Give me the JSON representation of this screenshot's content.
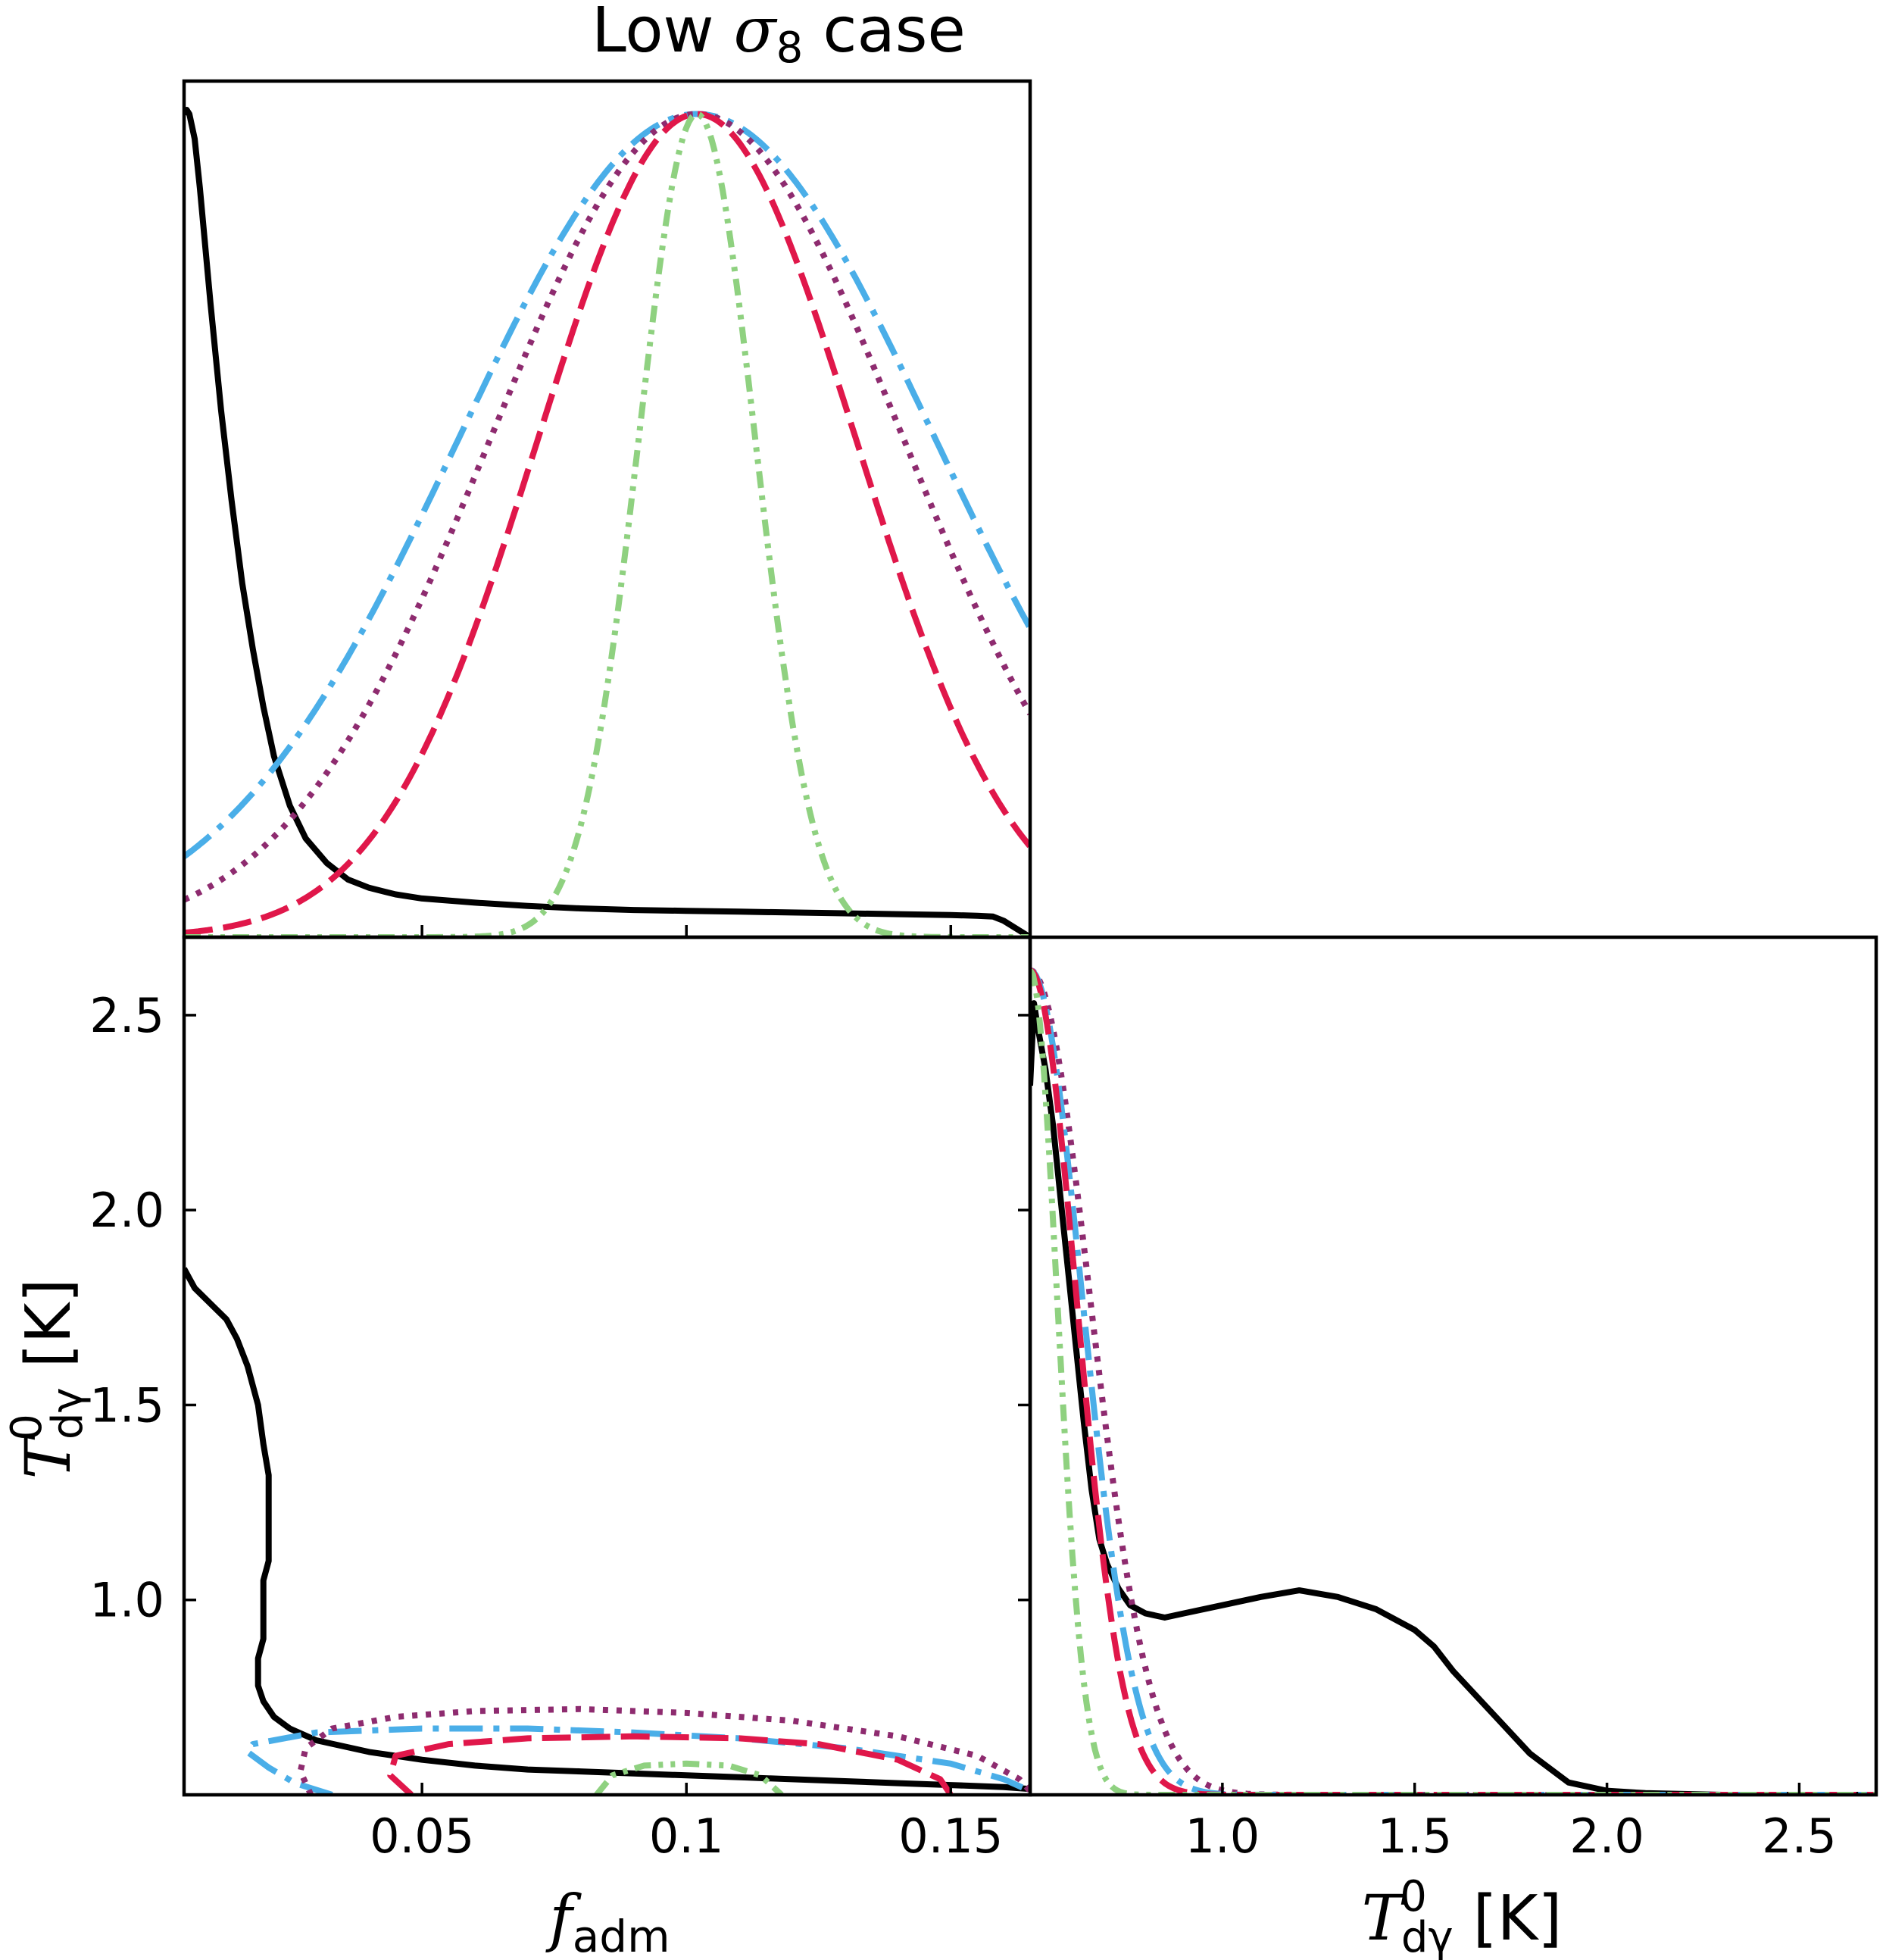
{
  "title": {
    "prefix": "Low ",
    "symbol": "σ",
    "subscript": "8",
    "suffix": " case"
  },
  "colors": {
    "black": "#000000",
    "blue": "#4aaee8",
    "purple": "#8e2b6f",
    "red": "#e0174a",
    "green": "#8fd180"
  },
  "chart_data": [
    {
      "panel": "marginal_f_adm",
      "type": "line",
      "xlim": [
        0.005,
        0.165
      ],
      "ylim": [
        0,
        1.04
      ],
      "x_ticks": [
        0.05,
        0.1,
        0.15
      ],
      "series": [
        {
          "color": "black",
          "style": "solid",
          "x": [
            0.005,
            0.0055,
            0.006,
            0.007,
            0.008,
            0.009,
            0.01,
            0.012,
            0.014,
            0.016,
            0.018,
            0.02,
            0.022,
            0.025,
            0.028,
            0.032,
            0.036,
            0.04,
            0.045,
            0.05,
            0.06,
            0.07,
            0.08,
            0.09,
            0.1,
            0.11,
            0.12,
            0.13,
            0.14,
            0.15,
            0.155,
            0.158,
            0.16,
            0.162,
            0.165
          ],
          "y": [
            1.0,
            1.005,
            1.0,
            0.97,
            0.91,
            0.84,
            0.77,
            0.64,
            0.53,
            0.43,
            0.35,
            0.28,
            0.22,
            0.16,
            0.12,
            0.09,
            0.07,
            0.06,
            0.052,
            0.047,
            0.042,
            0.038,
            0.035,
            0.033,
            0.032,
            0.031,
            0.03,
            0.029,
            0.028,
            0.027,
            0.026,
            0.025,
            0.02,
            0.012,
            0.0
          ]
        },
        {
          "color": "blue",
          "style": "dashdot",
          "mu": 0.102,
          "sigma": 0.045,
          "peak": 1.0
        },
        {
          "color": "purple",
          "style": "dotted",
          "mu": 0.102,
          "sigma": 0.039,
          "peak": 1.0
        },
        {
          "color": "red",
          "style": "dashed",
          "mu": 0.102,
          "sigma": 0.03,
          "peak": 1.0
        },
        {
          "color": "green",
          "style": "dashdotdot",
          "mu": 0.102,
          "sigma": 0.011,
          "peak": 1.0
        }
      ]
    },
    {
      "panel": "joint_f_adm_T_dgamma",
      "type": "contour",
      "xlim": [
        0.005,
        0.165
      ],
      "ylim": [
        0.5,
        2.7
      ],
      "x_ticks": [
        0.05,
        0.1,
        0.15
      ],
      "y_ticks": [
        1.0,
        1.5,
        2.0,
        2.5
      ],
      "xlabel": {
        "base": "f",
        "sub": "adm"
      },
      "ylabel": {
        "base": "T",
        "sup": "0",
        "sub": "dγ",
        "unit": " [K]"
      },
      "series": [
        {
          "color": "black",
          "style": "solid",
          "x": [
            0.005,
            0.007,
            0.01,
            0.013,
            0.015,
            0.017,
            0.019,
            0.02,
            0.021,
            0.021,
            0.02,
            0.02,
            0.019,
            0.019,
            0.02,
            0.022,
            0.025,
            0.03,
            0.04,
            0.05,
            0.06,
            0.07,
            0.08,
            0.09,
            0.1,
            0.11,
            0.12,
            0.13,
            0.14,
            0.15,
            0.16,
            0.165
          ],
          "y": [
            1.85,
            1.8,
            1.76,
            1.72,
            1.67,
            1.6,
            1.5,
            1.4,
            1.32,
            1.1,
            1.05,
            0.9,
            0.85,
            0.78,
            0.74,
            0.7,
            0.67,
            0.64,
            0.61,
            0.59,
            0.575,
            0.565,
            0.56,
            0.555,
            0.55,
            0.545,
            0.54,
            0.535,
            0.53,
            0.525,
            0.52,
            0.515
          ]
        },
        {
          "color": "blue",
          "style": "dashdot",
          "x": [
            0.033,
            0.026,
            0.021,
            0.017,
            0.018,
            0.03,
            0.05,
            0.07,
            0.09,
            0.11,
            0.13,
            0.15,
            0.16,
            0.165
          ],
          "y": [
            0.5,
            0.53,
            0.57,
            0.61,
            0.63,
            0.66,
            0.67,
            0.67,
            0.66,
            0.645,
            0.62,
            0.58,
            0.54,
            0.51
          ]
        },
        {
          "color": "purple",
          "style": "dotted",
          "x": [
            0.029,
            0.027,
            0.028,
            0.033,
            0.045,
            0.06,
            0.08,
            0.1,
            0.12,
            0.14,
            0.155,
            0.163,
            0.165
          ],
          "y": [
            0.5,
            0.56,
            0.62,
            0.67,
            0.7,
            0.715,
            0.72,
            0.71,
            0.69,
            0.65,
            0.6,
            0.54,
            0.51
          ]
        },
        {
          "color": "red",
          "style": "dashed",
          "x": [
            0.048,
            0.044,
            0.045,
            0.055,
            0.07,
            0.09,
            0.11,
            0.125,
            0.14,
            0.148,
            0.15
          ],
          "y": [
            0.5,
            0.55,
            0.6,
            0.63,
            0.645,
            0.65,
            0.645,
            0.63,
            0.59,
            0.54,
            0.5
          ]
        },
        {
          "color": "green",
          "style": "dashdotdot",
          "x": [
            0.083,
            0.086,
            0.092,
            0.1,
            0.108,
            0.114,
            0.118
          ],
          "y": [
            0.5,
            0.55,
            0.575,
            0.58,
            0.575,
            0.55,
            0.5
          ]
        }
      ]
    },
    {
      "panel": "marginal_T_dgamma",
      "type": "line",
      "xlim": [
        0.5,
        2.7
      ],
      "ylim": [
        0,
        1.04
      ],
      "x_ticks": [
        1.0,
        1.5,
        2.0,
        2.5
      ],
      "xlabel": {
        "base": "T",
        "sup": "0",
        "sub": "dγ",
        "unit": " [K]"
      },
      "series": [
        {
          "color": "black",
          "style": "solid",
          "x": [
            0.5,
            0.51,
            0.52,
            0.54,
            0.56,
            0.58,
            0.6,
            0.62,
            0.64,
            0.66,
            0.68,
            0.7,
            0.73,
            0.76,
            0.8,
            0.85,
            0.9,
            1.0,
            1.1,
            1.2,
            1.3,
            1.4,
            1.5,
            1.55,
            1.6,
            1.7,
            1.8,
            1.9,
            2.0,
            2.1,
            2.2,
            2.3,
            2.5,
            2.7
          ],
          "y": [
            0.86,
            0.96,
            0.93,
            0.88,
            0.81,
            0.72,
            0.63,
            0.54,
            0.45,
            0.37,
            0.31,
            0.28,
            0.25,
            0.23,
            0.22,
            0.215,
            0.22,
            0.23,
            0.24,
            0.248,
            0.24,
            0.225,
            0.2,
            0.18,
            0.15,
            0.1,
            0.05,
            0.015,
            0.005,
            0.002,
            0.001,
            0.0,
            0.0,
            0.0
          ]
        },
        {
          "color": "purple",
          "style": "dotted",
          "mu": 0.5,
          "sigma": 0.155,
          "peak": 1.0
        },
        {
          "color": "blue",
          "style": "dashdot",
          "mu": 0.5,
          "sigma": 0.135,
          "peak": 1.0
        },
        {
          "color": "red",
          "style": "dashed",
          "mu": 0.5,
          "sigma": 0.12,
          "peak": 1.0
        },
        {
          "color": "green",
          "style": "dashdotdot",
          "mu": 0.5,
          "sigma": 0.07,
          "peak": 1.0
        }
      ]
    }
  ]
}
